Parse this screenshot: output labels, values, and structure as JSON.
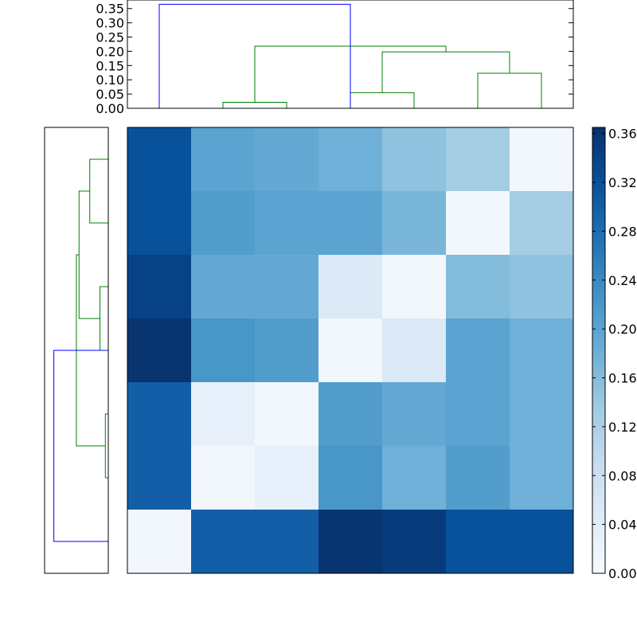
{
  "chart_data": [
    {
      "type": "dendrogram",
      "panel": "top",
      "ylim": [
        0,
        0.38
      ],
      "yticks": [
        "0.00",
        "0.05",
        "0.10",
        "0.15",
        "0.20",
        "0.25",
        "0.30",
        "0.35"
      ],
      "leaves": 7,
      "links": [
        {
          "left": 2,
          "right": 3,
          "height": 0.021,
          "color": "#008000"
        },
        {
          "left": 4,
          "right": 5,
          "height": 0.055,
          "color": "#008000"
        },
        {
          "left": 6,
          "right": 7,
          "height": 0.123,
          "color": "#008000"
        },
        {
          "left": 4.5,
          "right": 6.5,
          "height": 0.198,
          "color": "#008000"
        },
        {
          "left": 2.5,
          "right": 5.5,
          "height": 0.218,
          "color": "#008000"
        },
        {
          "left": 1,
          "right": 4,
          "height": 0.365,
          "color": "#0000ff"
        }
      ]
    },
    {
      "type": "dendrogram",
      "panel": "left",
      "ylim": [
        0,
        0.38
      ],
      "leaves": 7,
      "links": [
        {
          "left": 5,
          "right": 6,
          "height": 0.011,
          "color": "#008000"
        },
        {
          "left": 3,
          "right": 4,
          "height": 0.031,
          "color": "#008000"
        },
        {
          "left": 1,
          "right": 2,
          "height": 0.069,
          "color": "#008000"
        },
        {
          "left": 1.5,
          "right": 3.5,
          "height": 0.109,
          "color": "#008000"
        },
        {
          "left": 2.5,
          "right": 5.5,
          "height": 0.119,
          "color": "#008000"
        },
        {
          "left": 4,
          "right": 7,
          "height": 0.203,
          "color": "#0000ff"
        }
      ]
    },
    {
      "type": "heatmap",
      "panel": "main",
      "colormap": "Blues",
      "vmin": 0,
      "vmax": 0.365,
      "colorbar_ticks": [
        "0.00",
        "0.04",
        "0.08",
        "0.12",
        "0.16",
        "0.20",
        "0.24",
        "0.28",
        "0.32",
        "0.36"
      ],
      "values": [
        [
          0.32,
          0.2,
          0.19,
          0.18,
          0.15,
          0.13,
          0.01
        ],
        [
          0.32,
          0.21,
          0.2,
          0.2,
          0.17,
          0.01,
          0.13
        ],
        [
          0.34,
          0.19,
          0.19,
          0.05,
          0.01,
          0.16,
          0.15
        ],
        [
          0.36,
          0.22,
          0.21,
          0.01,
          0.05,
          0.2,
          0.18
        ],
        [
          0.3,
          0.03,
          0.01,
          0.21,
          0.19,
          0.2,
          0.18
        ],
        [
          0.3,
          0.01,
          0.03,
          0.22,
          0.18,
          0.21,
          0.18
        ],
        [
          0.01,
          0.3,
          0.3,
          0.36,
          0.35,
          0.32,
          0.32
        ]
      ]
    }
  ]
}
